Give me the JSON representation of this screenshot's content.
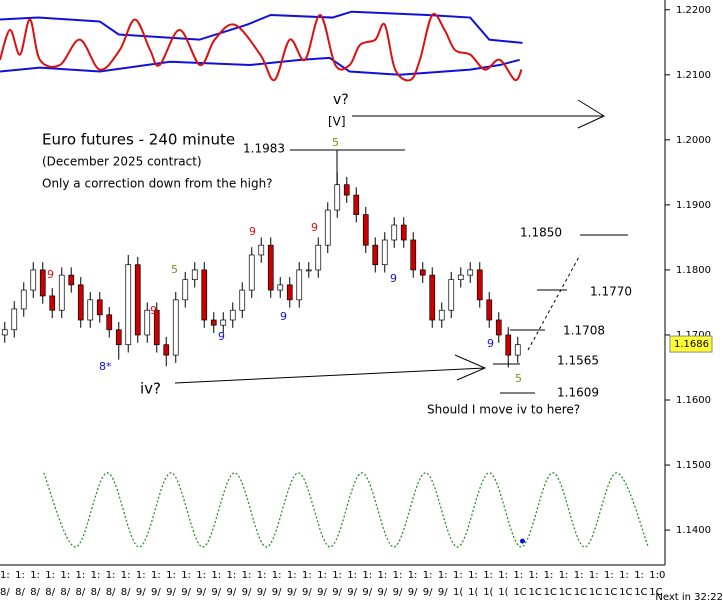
{
  "footer": "Next in 32:22",
  "chart_data": {
    "type": "candlestick",
    "title": "Euro futures - 240 minute",
    "subtitle": "(December 2025 contract)",
    "ylim": [
      1.1354,
      1.2215
    ],
    "yticks": [
      {
        "value": 1.22,
        "label": "1.2200"
      },
      {
        "value": 1.21,
        "label": "1.2100"
      },
      {
        "value": 1.2,
        "label": "1.2000"
      },
      {
        "value": 1.19,
        "label": "1.1900"
      },
      {
        "value": 1.18,
        "label": "1.1800"
      },
      {
        "value": 1.17,
        "label": "1.1700"
      },
      {
        "value": 1.16,
        "label": "1.1600"
      },
      {
        "value": 1.15,
        "label": "1.1500"
      },
      {
        "value": 1.14,
        "label": "1.1400"
      }
    ],
    "xlim": [
      0,
      70
    ],
    "x_label_rows": [
      [
        "1:",
        "1:",
        "1:",
        "1:",
        "1:",
        "1:",
        "1:",
        "1:",
        "1:",
        "1:",
        "1:",
        "1:",
        "1:",
        "1:",
        "1:",
        "1:",
        "1:",
        "1:",
        "1:",
        "1:",
        "1:",
        "1:",
        "1:",
        "1:",
        "1:",
        "1:",
        "1:",
        "1:",
        "1:",
        "1:",
        "1:",
        "1:",
        "1:",
        "1:",
        "1:",
        "1:",
        "1:",
        "1:",
        "1:",
        "1:",
        "1:",
        "1:",
        "1:",
        "1:0"
      ],
      [
        "8/",
        "8/",
        "8/",
        "8/",
        "8/",
        "8/",
        "8/",
        "8/",
        "8/",
        "9/",
        "9/",
        "9/",
        "9/",
        "9/",
        "9/",
        "9/",
        "9/",
        "9/",
        "9/",
        "9/",
        "9/",
        "9/",
        "9/",
        "9/",
        "9/",
        "9/",
        "9/",
        "9/",
        "9/",
        "9/",
        "1(",
        "1(",
        "1(",
        "1(",
        "1C",
        "1C",
        "1C",
        "1C",
        "1C",
        "1C",
        "1C",
        "1C",
        "1C",
        "1C"
      ]
    ],
    "candles": {
      "up_color": "#ffffff",
      "down_color": "#cc0000",
      "open": [
        1.17,
        1.1708,
        1.174,
        1.1769,
        1.18,
        1.176,
        1.1738,
        1.1792,
        1.1777,
        1.1723,
        1.1754,
        1.1731,
        1.1708,
        1.1685,
        1.1808,
        1.17,
        1.1738,
        1.1685,
        1.1669,
        1.1754,
        1.1785,
        1.18,
        1.1723,
        1.1715,
        1.1723,
        1.1738,
        1.1769,
        1.1823,
        1.1838,
        1.1769,
        1.1777,
        1.1754,
        1.18,
        1.18,
        1.1838,
        1.1892,
        1.1931,
        1.1915,
        1.1885,
        1.1838,
        1.1808,
        1.1846,
        1.1869,
        1.1846,
        1.18,
        1.1792,
        1.1723,
        1.1738,
        1.1785,
        1.1792,
        1.18,
        1.1754,
        1.1723,
        1.17,
        1.1669
      ],
      "high": [
        1.172,
        1.1752,
        1.1781,
        1.1812,
        1.1812,
        1.1772,
        1.1804,
        1.1804,
        1.1789,
        1.1766,
        1.1766,
        1.1743,
        1.172,
        1.1823,
        1.182,
        1.175,
        1.175,
        1.1697,
        1.1766,
        1.1797,
        1.1812,
        1.1812,
        1.1735,
        1.1735,
        1.175,
        1.1781,
        1.1835,
        1.185,
        1.185,
        1.1789,
        1.1789,
        1.1812,
        1.1812,
        1.185,
        1.1904,
        1.195,
        1.1943,
        1.1927,
        1.1897,
        1.185,
        1.1858,
        1.1881,
        1.1881,
        1.1858,
        1.1812,
        1.1804,
        1.175,
        1.1797,
        1.1804,
        1.1812,
        1.1812,
        1.1766,
        1.1735,
        1.1712,
        1.1697
      ],
      "low": [
        1.1688,
        1.1696,
        1.1728,
        1.1757,
        1.1748,
        1.1726,
        1.1726,
        1.1765,
        1.1711,
        1.1711,
        1.1719,
        1.1696,
        1.1662,
        1.1673,
        1.1688,
        1.1688,
        1.1673,
        1.1652,
        1.1657,
        1.1742,
        1.1773,
        1.1711,
        1.1703,
        1.1703,
        1.1711,
        1.1726,
        1.1757,
        1.1811,
        1.1757,
        1.1757,
        1.1742,
        1.1742,
        1.1788,
        1.1788,
        1.1826,
        1.188,
        1.1903,
        1.1873,
        1.1826,
        1.1796,
        1.1796,
        1.1834,
        1.1834,
        1.1788,
        1.178,
        1.1711,
        1.1711,
        1.1726,
        1.1773,
        1.178,
        1.1742,
        1.1711,
        1.1688,
        1.165,
        1.1657
      ],
      "close": [
        1.1708,
        1.174,
        1.1769,
        1.18,
        1.176,
        1.1738,
        1.1792,
        1.1777,
        1.1723,
        1.1754,
        1.1731,
        1.1708,
        1.1685,
        1.1808,
        1.17,
        1.1738,
        1.1685,
        1.1669,
        1.1754,
        1.1785,
        1.18,
        1.1723,
        1.1715,
        1.1723,
        1.1738,
        1.1769,
        1.1823,
        1.1838,
        1.1769,
        1.1777,
        1.1754,
        1.18,
        1.18,
        1.1838,
        1.1892,
        1.1931,
        1.1915,
        1.1885,
        1.1838,
        1.1808,
        1.1846,
        1.1869,
        1.1846,
        1.18,
        1.1792,
        1.1723,
        1.1738,
        1.1785,
        1.1792,
        1.18,
        1.1754,
        1.1723,
        1.17,
        1.1669,
        1.1685
      ]
    },
    "series": [
      {
        "color": "#1010dd",
        "dashed": false,
        "smooth": false,
        "x": [
          0,
          4,
          10.5,
          12.5,
          21,
          26,
          28.5,
          35,
          37,
          45,
          49.5,
          51.5,
          55
        ],
        "values": [
          1.2185,
          1.2188,
          1.2182,
          1.2162,
          1.2154,
          1.2177,
          1.2192,
          1.2188,
          1.2197,
          1.2192,
          1.2188,
          1.2154,
          1.2149
        ]
      },
      {
        "color": "#1010dd",
        "dashed": false,
        "smooth": false,
        "x": [
          0,
          4.2,
          10.5,
          17.9,
          26.3,
          31.6,
          34.7,
          36.8,
          42.1,
          49.5,
          52.6,
          54.7
        ],
        "values": [
          1.2105,
          1.2111,
          1.2105,
          1.212,
          1.2115,
          1.2123,
          1.2126,
          1.2105,
          1.21,
          1.2108,
          1.2115,
          1.2123
        ]
      },
      {
        "color": "#dd1010",
        "dashed": false,
        "smooth": true,
        "x": [
          0,
          1.05,
          2.1,
          3.15,
          4.2,
          6.3,
          8.4,
          10.5,
          12.6,
          14.2,
          15.8,
          16.8,
          18.9,
          21.05,
          22.6,
          24.7,
          27.4,
          28.9,
          30.5,
          32.1,
          33.7,
          35.3,
          36.8,
          37.9,
          39.5,
          40.5,
          41.6,
          43.2,
          44.2,
          45.5,
          46.8,
          47.9,
          49.5,
          51.05,
          52.6,
          54.2,
          54.9
        ],
        "values": [
          1.2123,
          1.2169,
          1.2131,
          1.2185,
          1.2123,
          1.2115,
          1.2154,
          1.2108,
          1.2138,
          1.2185,
          1.2138,
          1.2115,
          1.2169,
          1.2115,
          1.2154,
          1.2177,
          1.2131,
          1.2092,
          1.2154,
          1.2123,
          1.2192,
          1.2115,
          1.2115,
          1.2146,
          1.2154,
          1.2177,
          1.2108,
          1.2092,
          1.2123,
          1.2192,
          1.2169,
          1.2138,
          1.2131,
          1.2108,
          1.2123,
          1.2092,
          1.2108
        ]
      },
      {
        "color": "#1a8c1a",
        "dashed": true,
        "smooth": true,
        "x": [
          4.6,
          7.95,
          11.3,
          14.65,
          18.0,
          21.35,
          24.7,
          28.05,
          31.4,
          34.75,
          38.1,
          41.45,
          44.8,
          48.15,
          51.5,
          54.85,
          58.2,
          61.55,
          64.9,
          68.25
        ],
        "values": [
          1.1488,
          1.1374,
          1.1488,
          1.1374,
          1.1488,
          1.1374,
          1.1488,
          1.1374,
          1.1488,
          1.1374,
          1.1488,
          1.1374,
          1.1488,
          1.1374,
          1.1488,
          1.1374,
          1.1488,
          1.1374,
          1.1488,
          1.1374
        ]
      }
    ],
    "marker": {
      "x": 55,
      "value": 1.1383,
      "color": "#1010dd"
    },
    "current_price": 1.1686,
    "current_price_color": "#ffff33",
    "annotations": [
      {
        "text": "v?",
        "color": "#000000"
      },
      {
        "text": "[V]",
        "color": "#000000"
      },
      {
        "text": "Only a correction down from the high?",
        "color": "#000000"
      },
      {
        "text": "1.1983",
        "color": "#000000"
      },
      {
        "text": "1.1850",
        "color": "#000000"
      },
      {
        "text": "1.1770",
        "color": "#000000"
      },
      {
        "text": "1.1708",
        "color": "#000000"
      },
      {
        "text": "1.1565",
        "color": "#000000"
      },
      {
        "text": "1.1609",
        "color": "#000000"
      },
      {
        "text": "iv?",
        "color": "#000000"
      },
      {
        "text": "Should I move iv to here?",
        "color": "#000000"
      },
      {
        "text": "9",
        "color": "#dd1010"
      },
      {
        "text": "5",
        "color": "#8a8a20"
      },
      {
        "text": "9",
        "color": "#dd1010"
      },
      {
        "text": "9",
        "color": "#1010dd"
      },
      {
        "text": "9",
        "color": "#1010dd"
      },
      {
        "text": "9",
        "color": "#dd1010"
      },
      {
        "text": "9",
        "color": "#dd1010"
      },
      {
        "text": "5",
        "color": "#8a8a20"
      },
      {
        "text": "9",
        "color": "#1010dd"
      },
      {
        "text": "9",
        "color": "#1010dd"
      },
      {
        "text": "8*",
        "color": "#1010dd"
      },
      {
        "text": "5",
        "color": "#8a8a20"
      }
    ]
  }
}
